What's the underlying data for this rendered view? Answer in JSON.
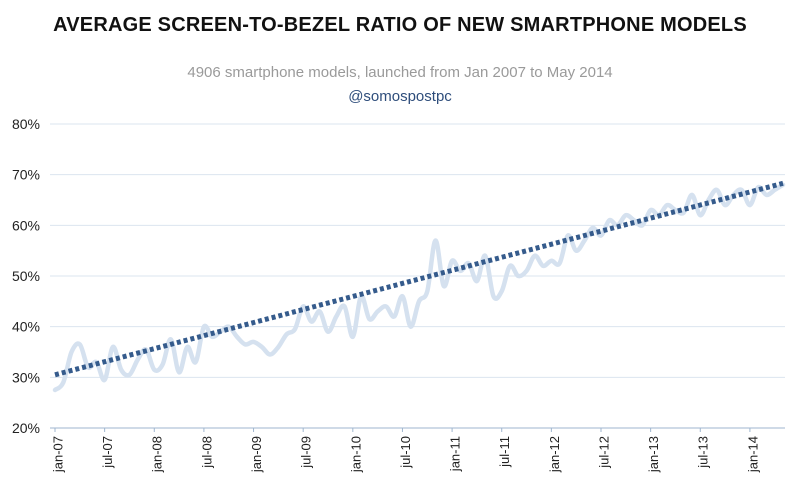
{
  "chart_data": {
    "type": "line",
    "title": "AVERAGE SCREEN-TO-BEZEL RATIO OF NEW SMARTPHONE MODELS",
    "subtitle": "4906 smartphone models, launched from Jan 2007 to May 2014",
    "source_handle": "@somospostpc",
    "ylim": [
      20,
      80
    ],
    "yticks": [
      "20%",
      "30%",
      "40%",
      "50%",
      "60%",
      "70%",
      "80%"
    ],
    "ytick_values": [
      20,
      30,
      40,
      50,
      60,
      70,
      80
    ],
    "xtick_labels": [
      "jan-07",
      "jul-07",
      "jan-08",
      "jul-08",
      "jan-09",
      "jul-09",
      "jan-10",
      "jul-10",
      "jan-11",
      "jul-11",
      "jan-12",
      "jul-12",
      "jan-13",
      "jul-13",
      "jan-14"
    ],
    "grid": true,
    "series": [
      {
        "name": "",
        "style": "smooth-line",
        "color": "#d5e1ef",
        "x": [
          "2007-01",
          "2007-02",
          "2007-03",
          "2007-04",
          "2007-05",
          "2007-06",
          "2007-07",
          "2007-08",
          "2007-09",
          "2007-10",
          "2007-11",
          "2007-12",
          "2008-01",
          "2008-02",
          "2008-03",
          "2008-04",
          "2008-05",
          "2008-06",
          "2008-07",
          "2008-08",
          "2008-09",
          "2008-10",
          "2008-11",
          "2008-12",
          "2009-01",
          "2009-02",
          "2009-03",
          "2009-04",
          "2009-05",
          "2009-06",
          "2009-07",
          "2009-08",
          "2009-09",
          "2009-10",
          "2009-11",
          "2009-12",
          "2010-01",
          "2010-02",
          "2010-03",
          "2010-04",
          "2010-05",
          "2010-06",
          "2010-07",
          "2010-08",
          "2010-09",
          "2010-10",
          "2010-11",
          "2010-12",
          "2011-01",
          "2011-02",
          "2011-03",
          "2011-04",
          "2011-05",
          "2011-06",
          "2011-07",
          "2011-08",
          "2011-09",
          "2011-10",
          "2011-11",
          "2011-12",
          "2012-01",
          "2012-02",
          "2012-03",
          "2012-04",
          "2012-05",
          "2012-06",
          "2012-07",
          "2012-08",
          "2012-09",
          "2012-10",
          "2012-11",
          "2012-12",
          "2013-01",
          "2013-02",
          "2013-03",
          "2013-04",
          "2013-05",
          "2013-06",
          "2013-07",
          "2013-08",
          "2013-09",
          "2013-10",
          "2013-11",
          "2013-12",
          "2014-01",
          "2014-02",
          "2014-03",
          "2014-04",
          "2014-05"
        ],
        "y": [
          27.5,
          29,
          35,
          36.5,
          32,
          33,
          29.5,
          36,
          31.5,
          30.5,
          33.5,
          35.5,
          31.5,
          32.5,
          37.5,
          31,
          36,
          33,
          40,
          38,
          39,
          40,
          38,
          36.5,
          37,
          36,
          34.5,
          36,
          38.5,
          39.5,
          44,
          41,
          43,
          39,
          42,
          44,
          38,
          46,
          41.5,
          43,
          44,
          42,
          46,
          40,
          45,
          47,
          57,
          48,
          53,
          51,
          52.5,
          49,
          54,
          46,
          47,
          52,
          50,
          51,
          54,
          52,
          53,
          52.5,
          58,
          55,
          57,
          59.5,
          58,
          61,
          60,
          62,
          61,
          60,
          63,
          62,
          64,
          63,
          62.5,
          66,
          62,
          65,
          67,
          64,
          66,
          67,
          64,
          67.5,
          66,
          67,
          68
        ]
      },
      {
        "name": "",
        "style": "dotted-trend",
        "color": "#355b8c",
        "x": [
          "2007-01",
          "2014-05"
        ],
        "y": [
          30.5,
          68.3
        ]
      }
    ]
  }
}
